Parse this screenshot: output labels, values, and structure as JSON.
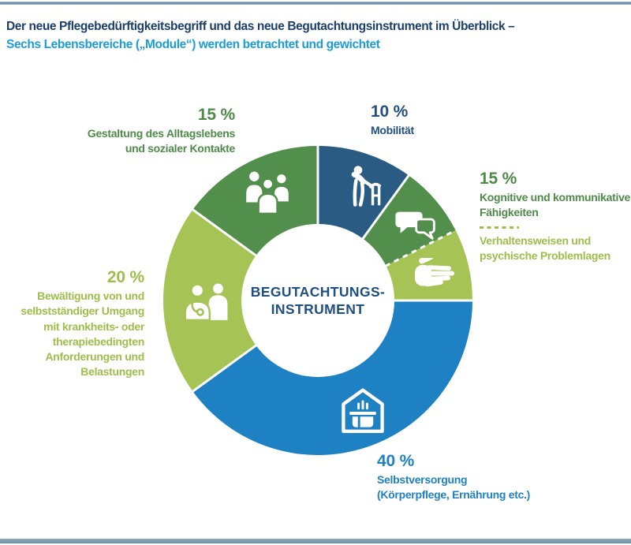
{
  "header": {
    "title_line1": "Der neue Pflegebedürftigkeitsbegriff und das neue Begutachtungsinstrument im Überblick –",
    "title_line2": "Sechs Lebensbereiche („Module“) werden betrachtet und gewichtet"
  },
  "colors": {
    "title_navy": "#1c3e6b",
    "subtitle_blue": "#1b9dd9",
    "label_navy": "#23507e",
    "label_green_dark": "#4f8a49",
    "label_green_lime": "#9dbe4a",
    "label_blue": "#1e81c3",
    "center_navy": "#1f4e80",
    "divider_white": "#ffffff",
    "rule_top_blue": "#54809f",
    "rule_bottom_blue": "#6a91a7"
  },
  "chart_data": {
    "type": "pie",
    "subtype": "donut",
    "direction": "clockwise",
    "start_angle_deg": 0,
    "center_label": [
      "BEGUTACHTUNGS-",
      "INSTRUMENT"
    ],
    "segments": [
      {
        "id": "mobilitaet",
        "label": "Mobilität",
        "percent": 10,
        "color": "#2a5b82",
        "icon": "walker-icon",
        "divider_after": "solid"
      },
      {
        "id": "kognitive_faehigkeiten",
        "label": "Kognitive und kommunikative Fähigkeiten",
        "percent": 7.5,
        "color": "#528e4c",
        "icon": "speech-bubbles-icon",
        "divider_after": "dashed"
      },
      {
        "id": "verhaltensweisen",
        "label": "Verhaltensweisen und psychische Problemlagen",
        "percent": 7.5,
        "color": "#a5c455",
        "icon": "hand-icon",
        "divider_after": "solid"
      },
      {
        "id": "selbstversorgung",
        "label": "Selbstversorgung (Körperpflege, Ernährung etc.)",
        "percent": 40,
        "color": "#1e81c3",
        "icon": "house-pot-icon",
        "divider_after": "solid"
      },
      {
        "id": "bewaeltigung",
        "label": "Bewältigung von und selbstständiger Umgang mit krankheits- oder therapiebedingten Anforderungen und Belastungen",
        "percent": 20,
        "color": "#a5c455",
        "icon": "doctor-patient-icon",
        "divider_after": "solid"
      },
      {
        "id": "gestaltung",
        "label": "Gestaltung des Alltagslebens und sozialer Kontakte",
        "percent": 15,
        "color": "#528e4c",
        "icon": "people-group-icon",
        "divider_after": "solid"
      }
    ]
  },
  "callouts": [
    {
      "id": "gestaltung",
      "percent": "15 %",
      "lines": [
        "Gestaltung des Alltagslebens",
        "und sozialer Kontakte"
      ],
      "color": "#4f8a49",
      "align": "right"
    },
    {
      "id": "mobilitaet",
      "percent": "10 %",
      "lines": [
        "Mobilität"
      ],
      "color": "#23507e",
      "align": "left"
    },
    {
      "id": "kognitiv_verhalten",
      "percent": "15 %",
      "group1": [
        "Kognitive und kommunikative",
        "Fähigkeiten"
      ],
      "group2": [
        "Verhaltensweisen und",
        "psychische Problemlagen"
      ],
      "color_group1": "#4f8a49",
      "color_group2": "#9dbe4a",
      "align": "left"
    },
    {
      "id": "bewaeltigung",
      "percent": "20 %",
      "lines": [
        "Bewältigung von und",
        "selbstständiger Umgang",
        "mit krankheits- oder",
        "therapiebedingten",
        "Anforderungen und",
        "Belastungen"
      ],
      "color": "#9dbe4a",
      "align": "right"
    },
    {
      "id": "selbstversorgung",
      "percent": "40 %",
      "lines": [
        "Selbstversorgung",
        "(Körperpflege, Ernährung etc.)"
      ],
      "color": "#1e81c3",
      "align": "left"
    }
  ]
}
